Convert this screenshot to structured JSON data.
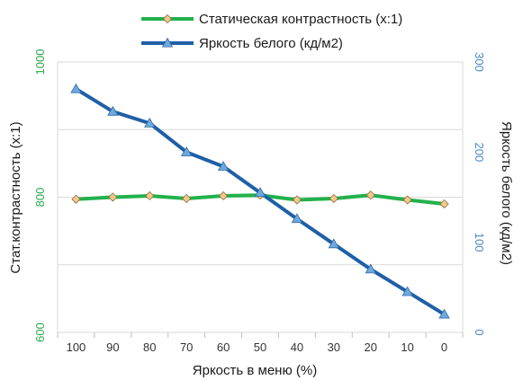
{
  "chart_data": {
    "type": "line",
    "x": [
      100,
      90,
      80,
      70,
      60,
      50,
      40,
      30,
      20,
      10,
      0
    ],
    "x_tick_labels": [
      "100",
      "90",
      "80",
      "70",
      "60",
      "50",
      "40",
      "30",
      "20",
      "10",
      "0"
    ],
    "xlabel": "Яркость в меню (%)",
    "ylabel_left": "Стат.контрастность  (x:1)",
    "ylabel_right": "Яркость белого (кд/м2)",
    "ylim_left": [
      600,
      1000
    ],
    "ylim_right": [
      0,
      300
    ],
    "left_ticks": [
      600,
      800,
      1000
    ],
    "left_tick_labels": [
      "600",
      "800",
      "1000"
    ],
    "right_ticks": [
      0,
      100,
      200,
      300
    ],
    "right_tick_labels": [
      "0",
      "100",
      "200",
      "300"
    ],
    "grid": true,
    "legend_position": "top",
    "left_axis_color": "#2aa84a",
    "right_axis_color": "#4a86c8",
    "series": [
      {
        "name": "Статическая контрастность (x:1)",
        "axis": "left",
        "line_color": "#22b14c",
        "marker": "diamond",
        "marker_color": "#f5c98a",
        "values": [
          797,
          800,
          802,
          798,
          802,
          803,
          796,
          798,
          803,
          796,
          790
        ]
      },
      {
        "name": "Яркость белого (кд/м2)",
        "axis": "right",
        "line_color": "#1f5fa8",
        "marker": "triangle",
        "marker_color": "#6fa8dc",
        "values": [
          270,
          245,
          232,
          200,
          184,
          155,
          126,
          98,
          70,
          45,
          20
        ]
      }
    ]
  }
}
